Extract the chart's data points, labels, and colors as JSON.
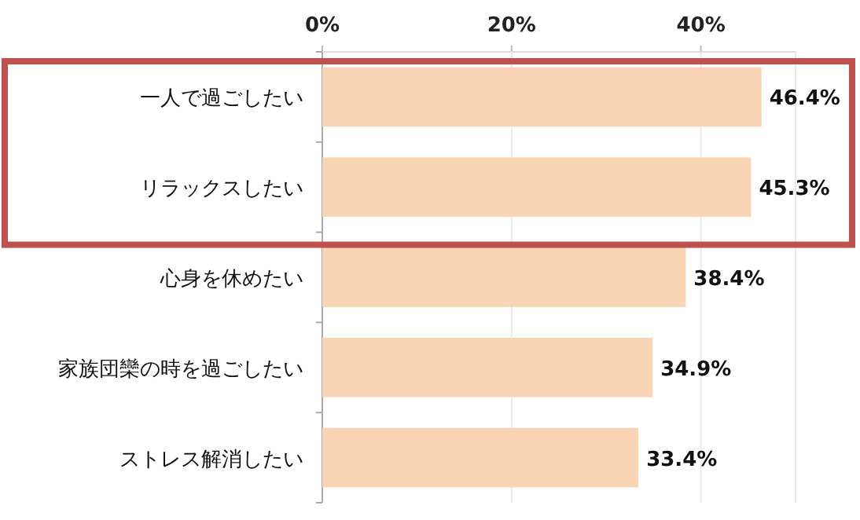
{
  "chart_data": {
    "type": "bar",
    "orientation": "horizontal",
    "categories": [
      "一人で過ごしたい",
      "リラックスしたい",
      "心身を休めたい",
      "家族団欒の時を過ごしたい",
      "ストレス解消したい"
    ],
    "values": [
      46.4,
      45.3,
      38.4,
      34.9,
      33.4
    ],
    "value_labels": [
      "46.4%",
      "45.3%",
      "38.4%",
      "34.9%",
      "33.4%"
    ],
    "color": "#fad5b5",
    "xlim": [
      0,
      50
    ],
    "xticks": [
      {
        "value": 0,
        "label": "0%"
      },
      {
        "value": 20,
        "label": "20%"
      },
      {
        "value": 40,
        "label": "40%"
      }
    ],
    "grid": "x"
  }
}
